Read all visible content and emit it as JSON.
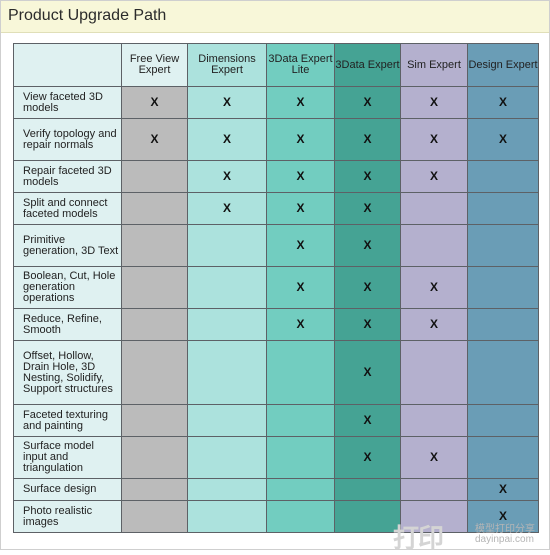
{
  "header": {
    "title": "Product Upgrade Path"
  },
  "columns": [
    "Free View Expert",
    "Dimensions Expert",
    "3Data Expert Lite",
    "3Data Expert",
    "Sim Expert",
    "Design Expert"
  ],
  "rows": [
    {
      "feature": "View faceted 3D models",
      "marks": [
        "X",
        "X",
        "X",
        "X",
        "X",
        "X"
      ]
    },
    {
      "feature": "Verify topology and repair normals",
      "marks": [
        "X",
        "X",
        "X",
        "X",
        "X",
        "X"
      ]
    },
    {
      "feature": "Repair faceted 3D models",
      "marks": [
        "",
        "X",
        "X",
        "X",
        "X",
        ""
      ]
    },
    {
      "feature": "Split and connect faceted models",
      "marks": [
        "",
        "X",
        "X",
        "X",
        "",
        ""
      ]
    },
    {
      "feature": "Primitive generation, 3D Text",
      "marks": [
        "",
        "",
        "X",
        "X",
        "",
        ""
      ]
    },
    {
      "feature": "Boolean, Cut, Hole generation operations",
      "marks": [
        "",
        "",
        "X",
        "X",
        "X",
        ""
      ]
    },
    {
      "feature": "Reduce, Refine, Smooth",
      "marks": [
        "",
        "",
        "X",
        "X",
        "X",
        ""
      ]
    },
    {
      "feature": "Offset, Hollow, Drain Hole, 3D Nesting, Solidify, Support structures",
      "marks": [
        "",
        "",
        "",
        "X",
        "",
        ""
      ]
    },
    {
      "feature": "Faceted texturing and painting",
      "marks": [
        "",
        "",
        "",
        "X",
        "",
        ""
      ]
    },
    {
      "feature": "Surface model input and triangulation",
      "marks": [
        "",
        "",
        "",
        "X",
        "X",
        ""
      ]
    },
    {
      "feature": "Surface design",
      "marks": [
        "",
        "",
        "",
        "",
        "",
        "X"
      ]
    },
    {
      "feature": "Photo realistic images",
      "marks": [
        "",
        "",
        "",
        "",
        "",
        "X"
      ]
    }
  ],
  "watermark": {
    "big": "打印",
    "line1": "模型打印分享",
    "line2": "dayinpai.com"
  }
}
